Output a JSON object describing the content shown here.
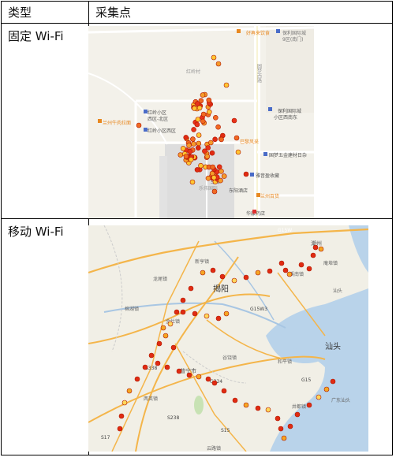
{
  "table": {
    "header": {
      "col_type": "类型",
      "col_points": "采集点"
    },
    "rows": [
      {
        "type_label": "固定 Wi-Fi"
      },
      {
        "type_label": "移动 Wi-Fi"
      }
    ]
  },
  "map_fixed": {
    "labels": {
      "l1": "好再来饮食",
      "l2": "保利国际城",
      "l3": "9区(南门)",
      "l4": "红岭村",
      "l5": "圆梦西路",
      "l6": "红岭小区",
      "l7": "西区-北区",
      "l8": "保利国际城",
      "l9": "小区西南东",
      "l10": "兰州牛肉拉面",
      "l11": "红岭小区西区",
      "l12": "巴黎风采",
      "l13": "国梦五金建材日杂",
      "l14": "雅音盈收藏",
      "l15": "车库",
      "l16": "乐伟国际",
      "l17": "东阳酒店",
      "l18": "兰州百货",
      "l19": "华康药店"
    }
  },
  "map_mobile": {
    "labels": {
      "m1": "G15W",
      "m2": "潮州",
      "m3": "庵埠镇",
      "m4": "揭阳",
      "m5": "新亨镇",
      "m6": "龙尾镇",
      "m7": "溪南镇",
      "m8": "汕头",
      "m9": "棉湖镇",
      "m10": "金灶镇",
      "m11": "和平镇",
      "m12": "普宁市",
      "m13": "谷饶镇",
      "m14": "两英镇",
      "m15": "汕头",
      "m16": "井都镇",
      "m17": "广东汕头",
      "m18": "S17",
      "m19": "S15",
      "m20": "G15",
      "m21": "S238",
      "m22": "S338",
      "m23": "G324",
      "m24": "G15W3",
      "m25": "云路镇"
    },
    "colors": {
      "route_dot": "#e02b12",
      "halo": "#ffd75a"
    }
  }
}
